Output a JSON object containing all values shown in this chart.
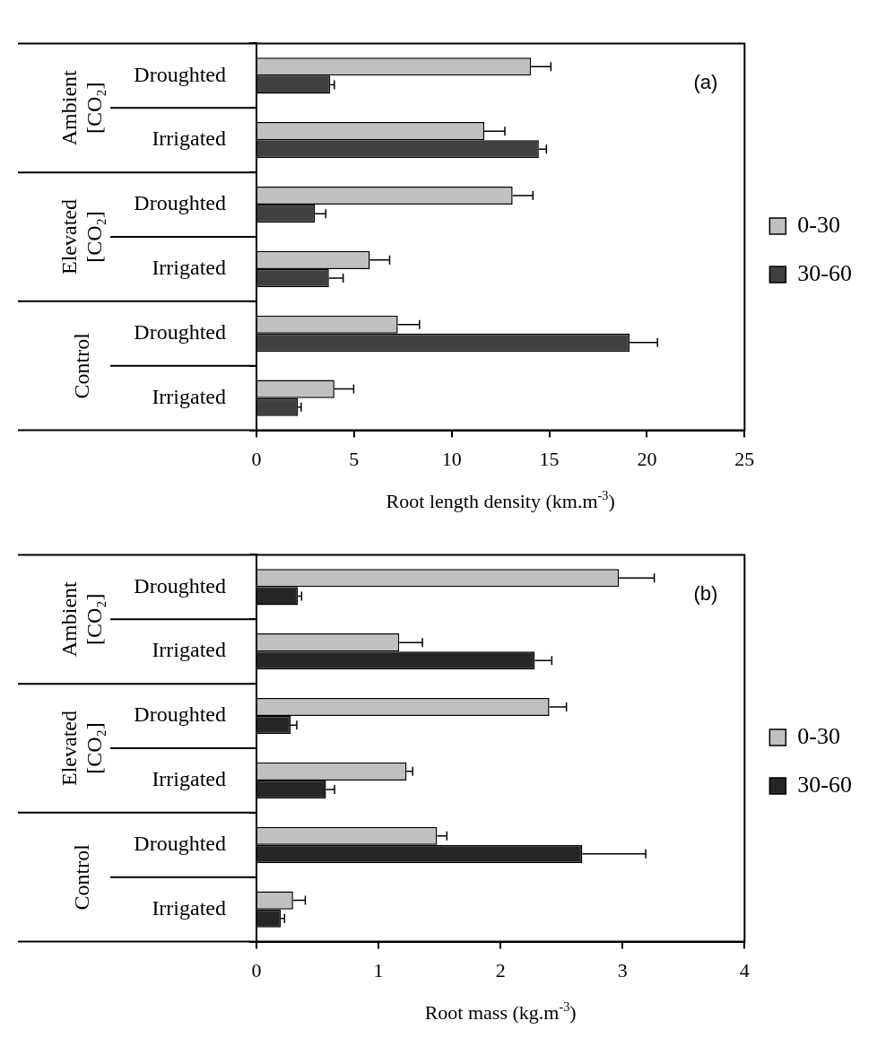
{
  "chart_data": [
    {
      "type": "bar",
      "orientation": "horizontal",
      "title": "(a)",
      "categories": [
        "Droughted",
        "Irrigated",
        "Droughted",
        "Irrigated",
        "Droughted",
        "Irrigated"
      ],
      "annotations": [
        "Ambient\n[CO₂]",
        "Elevated\n[CO₂]",
        "Control"
      ],
      "xlabel": "Root length density (km.m$^{-3}$)",
      "xlim": [
        0,
        25
      ],
      "xticks": [
        0,
        5,
        10,
        15,
        20,
        25
      ],
      "grid": false,
      "legend": "right",
      "series": [
        {
          "name": "0-30",
          "color": "#c0c0c0",
          "values": [
            14.06,
            11.67,
            13.12,
            5.81,
            7.24,
            3.99
          ],
          "errors": [
            [
              14.06,
              15.08
            ],
            [
              11.67,
              12.72
            ],
            [
              13.12,
              14.16
            ],
            [
              5.81,
              6.82
            ],
            [
              7.24,
              8.35
            ],
            [
              3.99,
              4.98
            ]
          ]
        },
        {
          "name": "30-60",
          "color": "#404040",
          "values": [
            3.78,
            14.46,
            3.0,
            3.71,
            19.11,
            2.13
          ],
          "errors": [
            [
              3.78,
              3.99
            ],
            [
              14.46,
              14.85
            ],
            [
              3.0,
              3.55
            ],
            [
              3.71,
              4.44
            ],
            [
              19.11,
              20.54
            ],
            [
              2.13,
              2.29
            ]
          ]
        }
      ]
    },
    {
      "type": "bar",
      "orientation": "horizontal",
      "title": "(b)",
      "categories": [
        "Droughted",
        "Irrigated",
        "Droughted",
        "Irrigated",
        "Droughted",
        "Irrigated"
      ],
      "annotations": [
        "Ambient\n[CO₂]",
        "Elevated\n[CO₂]",
        "Control"
      ],
      "xlabel": "Root mass (kg.m$^{-3}$)",
      "xlim": [
        0,
        4
      ],
      "xticks": [
        0,
        1,
        2,
        3,
        4
      ],
      "grid": false,
      "legend": "right",
      "series": [
        {
          "name": "0-30",
          "color": "#c0c0c0",
          "values": [
            2.97,
            1.17,
            2.4,
            1.23,
            1.48,
            0.3
          ],
          "errors": [
            [
              2.97,
              3.26
            ],
            [
              1.17,
              1.36
            ],
            [
              2.4,
              2.54
            ],
            [
              1.23,
              1.28
            ],
            [
              1.48,
              1.56
            ],
            [
              0.3,
              0.4
            ]
          ]
        },
        {
          "name": "30-60",
          "color": "#262626",
          "values": [
            0.34,
            2.28,
            0.28,
            0.57,
            2.67,
            0.2
          ],
          "errors": [
            [
              0.34,
              0.37
            ],
            [
              2.28,
              2.42
            ],
            [
              0.28,
              0.33
            ],
            [
              0.57,
              0.64
            ],
            [
              2.67,
              3.19
            ],
            [
              0.2,
              0.23
            ]
          ]
        }
      ]
    }
  ]
}
